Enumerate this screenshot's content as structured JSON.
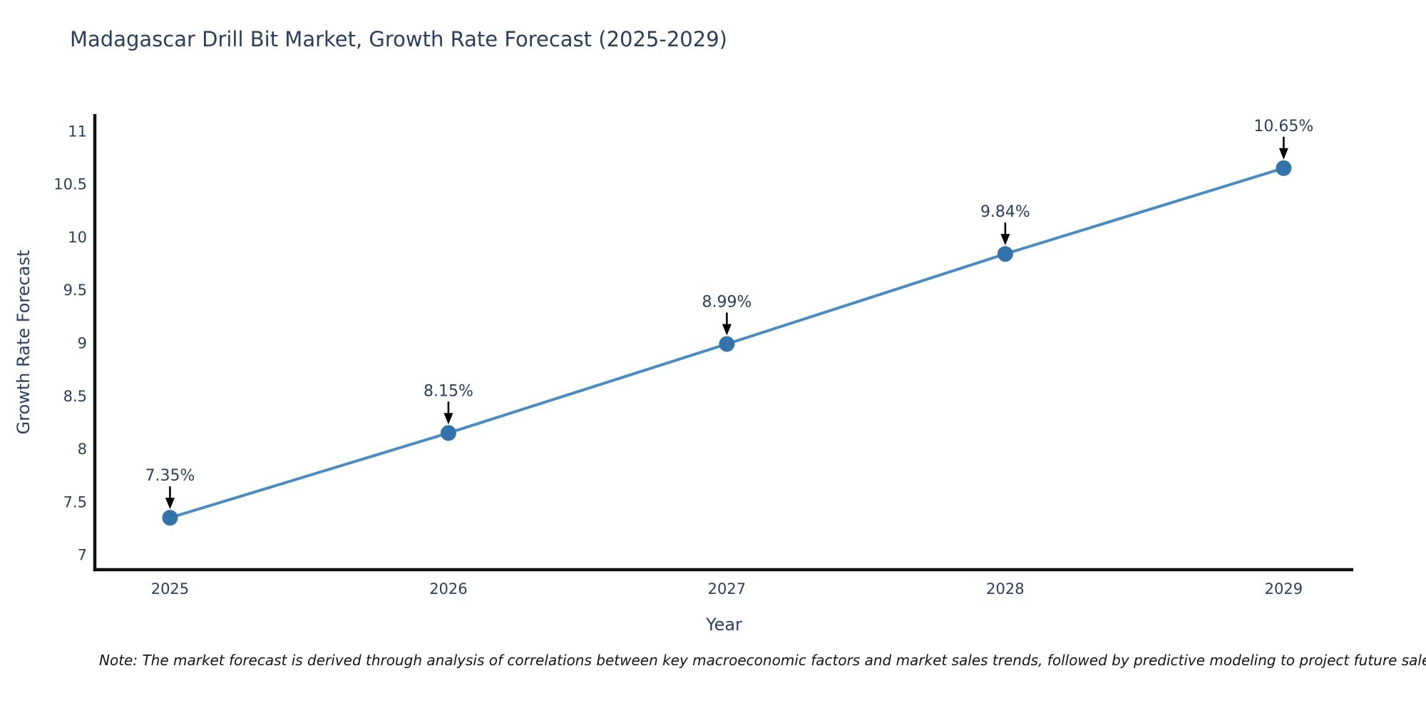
{
  "figure": {
    "note": "Note: The market forecast is derived through analysis of correlations between key macroeconomic factors and market sales trends, followed by predictive modeling to project future sales."
  },
  "chart_data": {
    "type": "line",
    "title": "Madagascar Drill Bit Market, Growth Rate Forecast (2025-2029)",
    "xlabel": "Year",
    "ylabel": "Growth Rate Forecast",
    "x": [
      2025,
      2026,
      2027,
      2028,
      2029
    ],
    "values": [
      7.35,
      8.15,
      8.99,
      9.84,
      10.65
    ],
    "point_labels": [
      "7.35%",
      "8.15%",
      "8.99%",
      "9.84%",
      "10.65%"
    ],
    "xtick_labels": [
      "2025",
      "2026",
      "2027",
      "2028",
      "2029"
    ],
    "ytick_values": [
      7,
      7.5,
      8,
      8.5,
      9,
      9.5,
      10,
      10.5,
      11
    ],
    "ytick_labels": [
      "7",
      "7.5",
      "8",
      "8.5",
      "9",
      "9.5",
      "10",
      "10.5",
      "11"
    ],
    "xlim": [
      2024.73,
      2029.25
    ],
    "ylim": [
      6.86,
      11.16
    ],
    "grid": false,
    "legend_position": "none",
    "annotation_style": "value labels with black down arrows above each marker",
    "colors": {
      "line": "#4a8bc2",
      "marker": "#3273ac",
      "axis": "#101010",
      "text": "#2a3f5f",
      "annotation_arrow": "#000000",
      "note_text": "#141414",
      "background": "#ffffff"
    }
  }
}
